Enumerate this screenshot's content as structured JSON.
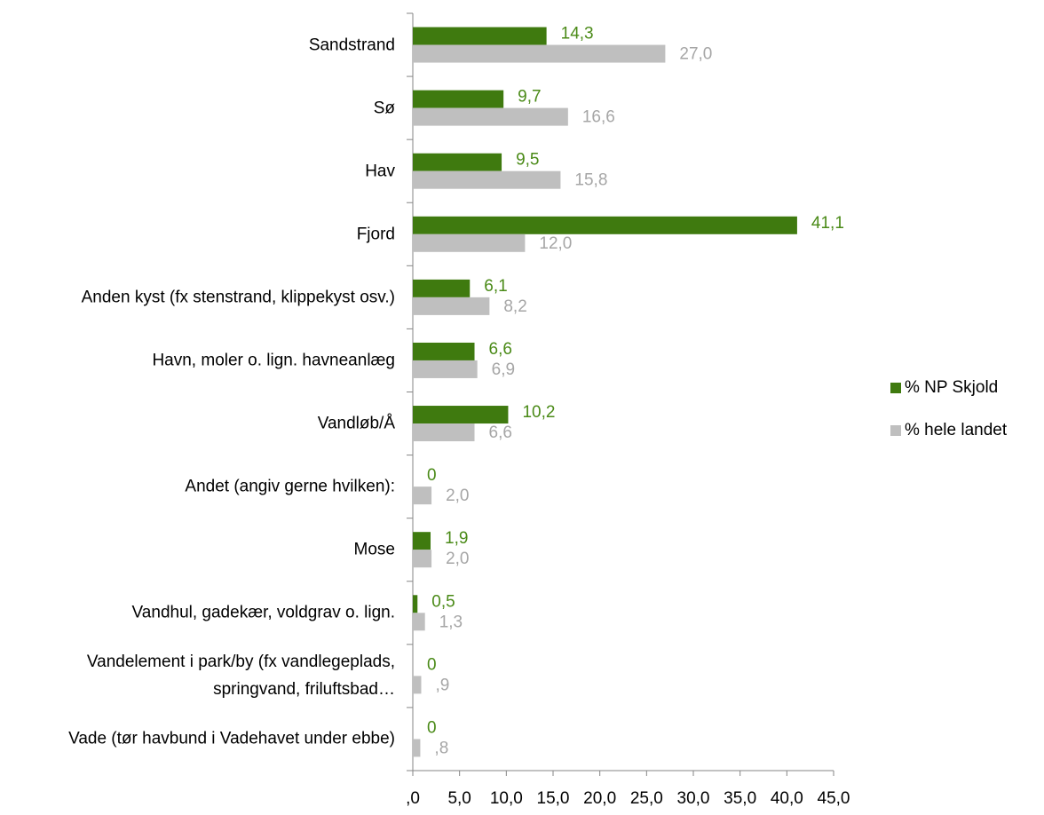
{
  "chart_data": {
    "type": "bar",
    "orientation": "horizontal",
    "categories": [
      "Sandstrand",
      "Sø",
      "Hav",
      "Fjord",
      "Anden kyst (fx stenstrand, klippekyst osv.)",
      "Havn, moler o. lign. havneanlæg",
      "Vandløb/Å",
      "Andet (angiv gerne hvilken):",
      "Mose",
      "Vandhul, gadekær, voldgrav o. lign.",
      "Vandelement i park/by (fx vandlegeplads, springvand, friluftsbad…",
      "Vade (tør havbund i Vadehavet under ebbe)"
    ],
    "series": [
      {
        "name": "% NP Skjold",
        "color": "#3f7a0f",
        "label_color": "#4a8a17",
        "values": [
          14.3,
          9.7,
          9.5,
          41.1,
          6.1,
          6.6,
          10.2,
          0,
          1.9,
          0.5,
          0,
          0
        ],
        "value_labels": [
          "14,3",
          "9,7",
          "9,5",
          "41,1",
          "6,1",
          "6,6",
          "10,2",
          "0",
          "1,9",
          "0,5",
          "0",
          "0"
        ]
      },
      {
        "name": "% hele landet",
        "color": "#bfbfbf",
        "label_color": "#a6a6a6",
        "values": [
          27.0,
          16.6,
          15.8,
          12.0,
          8.2,
          6.9,
          6.6,
          2.0,
          2.0,
          1.3,
          0.9,
          0.8
        ],
        "value_labels": [
          "27,0",
          "16,6",
          "15,8",
          "12,0",
          "8,2",
          "6,9",
          "6,6",
          "2,0",
          "2,0",
          "1,3",
          ",9",
          ",8"
        ]
      }
    ],
    "xlim": [
      0,
      45
    ],
    "xticks": [
      {
        "value": 0,
        "label": ",0"
      },
      {
        "value": 5,
        "label": "5,0"
      },
      {
        "value": 10,
        "label": "10,0"
      },
      {
        "value": 15,
        "label": "15,0"
      },
      {
        "value": 20,
        "label": "20,0"
      },
      {
        "value": 25,
        "label": "25,0"
      },
      {
        "value": 30,
        "label": "30,0"
      },
      {
        "value": 35,
        "label": "35,0"
      },
      {
        "value": 40,
        "label": "40,0"
      },
      {
        "value": 45,
        "label": "45,0"
      }
    ],
    "grid": false,
    "legend": "right"
  }
}
